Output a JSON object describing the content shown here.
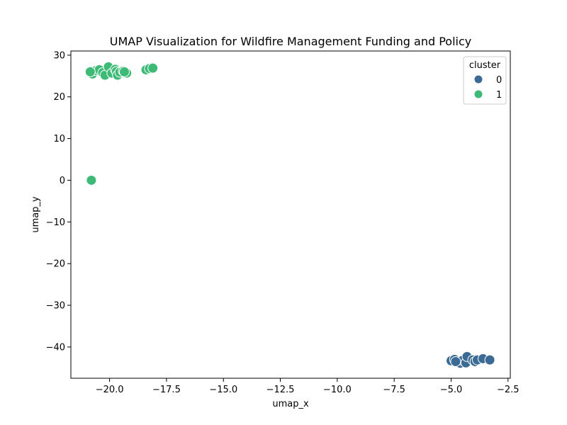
{
  "chart_data": {
    "type": "scatter",
    "title": "UMAP Visualization for Wildfire Management Funding and Policy",
    "xlabel": "umap_x",
    "ylabel": "umap_y",
    "xlim": [
      -21.7,
      -2.4
    ],
    "ylim": [
      -47.5,
      31.0
    ],
    "xticks": [
      -20.0,
      -17.5,
      -15.0,
      -12.5,
      -10.0,
      -7.5,
      -5.0,
      -2.5
    ],
    "xtick_labels": [
      "−20.0",
      "−17.5",
      "−15.0",
      "−12.5",
      "−10.0",
      "−7.5",
      "−5.0",
      "−2.5"
    ],
    "yticks": [
      -40,
      -30,
      -20,
      -10,
      0,
      10,
      20,
      30
    ],
    "ytick_labels": [
      "−40",
      "−30",
      "−20",
      "−10",
      "0",
      "10",
      "20",
      "30"
    ],
    "grid": false,
    "legend": {
      "title": "cluster",
      "placement": "top-right"
    },
    "series": [
      {
        "name": "0",
        "color": "#3b6b94",
        "points": [
          [
            -5.0,
            -43.3
          ],
          [
            -4.85,
            -43.0
          ],
          [
            -4.75,
            -43.6
          ],
          [
            -4.6,
            -43.9
          ],
          [
            -4.5,
            -43.2
          ],
          [
            -4.35,
            -43.8
          ],
          [
            -4.3,
            -42.3
          ],
          [
            -4.05,
            -43.1
          ],
          [
            -3.95,
            -43.5
          ],
          [
            -3.85,
            -43.1
          ],
          [
            -3.6,
            -42.8
          ],
          [
            -3.3,
            -43.1
          ],
          [
            -4.8,
            -43.5
          ]
        ]
      },
      {
        "name": "1",
        "color": "#3dba76",
        "points": [
          [
            -20.8,
            -0.0
          ],
          [
            -20.75,
            25.5
          ],
          [
            -20.6,
            26.3
          ],
          [
            -20.45,
            26.5
          ],
          [
            -20.3,
            25.8
          ],
          [
            -20.2,
            25.2
          ],
          [
            -20.05,
            27.2
          ],
          [
            -19.9,
            25.7
          ],
          [
            -19.75,
            26.6
          ],
          [
            -19.7,
            26.1
          ],
          [
            -19.65,
            25.2
          ],
          [
            -19.55,
            25.9
          ],
          [
            -19.4,
            26.2
          ],
          [
            -19.25,
            25.7
          ],
          [
            -18.4,
            26.5
          ],
          [
            -18.25,
            26.8
          ],
          [
            -18.1,
            26.9
          ],
          [
            -19.35,
            26.0
          ],
          [
            -20.85,
            26.0
          ]
        ]
      }
    ]
  }
}
